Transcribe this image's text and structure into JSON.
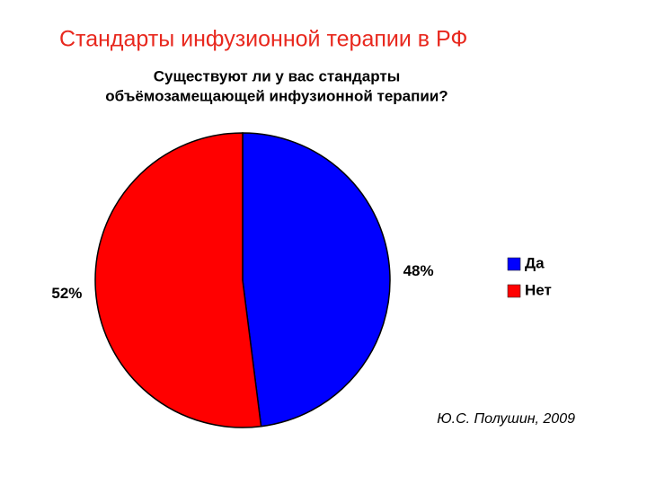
{
  "header": {
    "title": "Стандарты инфузионной терапии в РФ"
  },
  "chart_data": {
    "type": "pie",
    "title": [
      "Существуют ли у вас стандарты",
      "объёмозамещающей инфузионной терапии?"
    ],
    "categories": [
      "Да",
      "Нет"
    ],
    "values": [
      48,
      52
    ],
    "value_labels": [
      "48%",
      "52%"
    ],
    "colors": [
      "#0000ff",
      "#ff0000"
    ],
    "legend": "right",
    "annotation": "Ю.С. Полушин, 2009"
  }
}
